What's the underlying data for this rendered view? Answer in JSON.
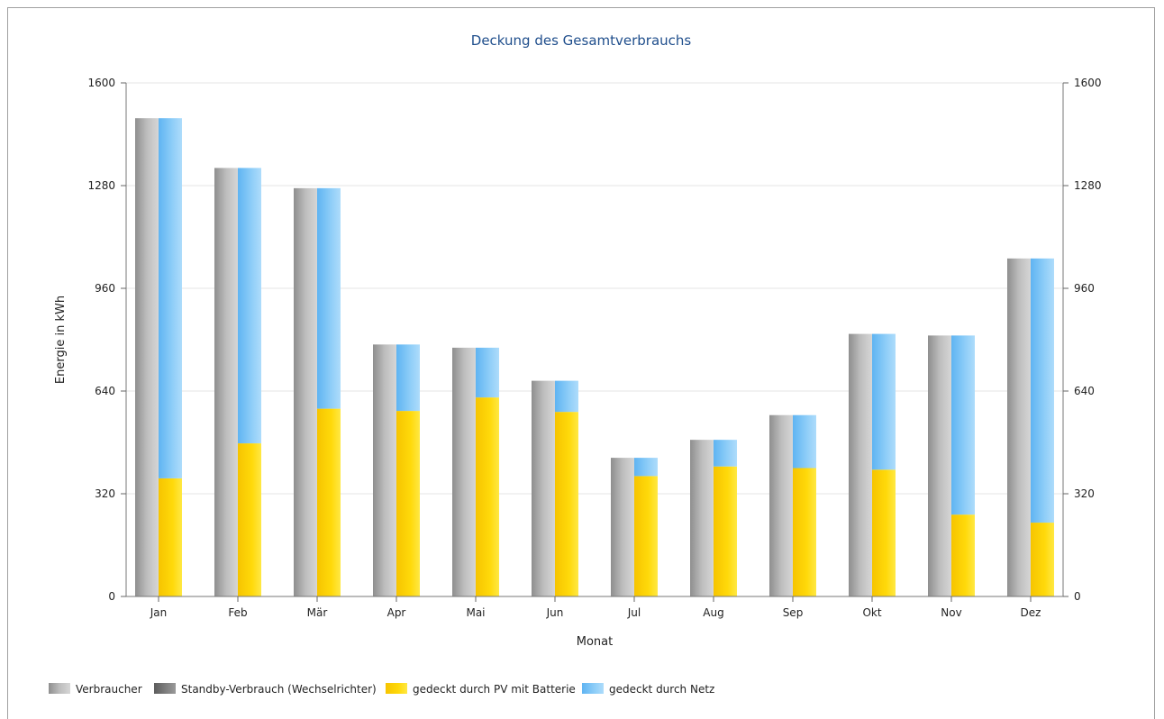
{
  "chart_data": {
    "type": "bar",
    "title": "Deckung des Gesamtverbrauchs",
    "xlabel": "Monat",
    "ylabel": "Energie in kWh",
    "ylim": [
      0,
      1600
    ],
    "yticks": [
      0,
      320,
      640,
      960,
      1280,
      1600
    ],
    "grid": true,
    "legend_position": "bottom-left",
    "categories": [
      "Jan",
      "Feb",
      "Mär",
      "Apr",
      "Mai",
      "Jun",
      "Jul",
      "Aug",
      "Sep",
      "Okt",
      "Nov",
      "Dez"
    ],
    "series": [
      {
        "name": "Verbraucher",
        "stack": "left",
        "color": "#a8a8a8",
        "values": [
          1490,
          1335,
          1272,
          785,
          775,
          672,
          432,
          488,
          565,
          818,
          813,
          1053
        ]
      },
      {
        "name": "Standby-Verbrauch (Wechselrichter)",
        "stack": "left",
        "color": "#7a7a7a",
        "values": [
          0,
          0,
          0,
          0,
          0,
          0,
          0,
          0,
          0,
          0,
          0,
          0
        ]
      },
      {
        "name": "gedeckt durch PV mit Batterie",
        "stack": "right",
        "color": "#ffd200",
        "values": [
          368,
          477,
          585,
          578,
          620,
          575,
          375,
          405,
          400,
          395,
          255,
          230
        ]
      },
      {
        "name": "gedeckt durch Netz",
        "stack": "right",
        "color": "#7cc4f6",
        "values": [
          1122,
          858,
          687,
          207,
          155,
          97,
          57,
          83,
          165,
          423,
          558,
          823
        ]
      }
    ]
  }
}
